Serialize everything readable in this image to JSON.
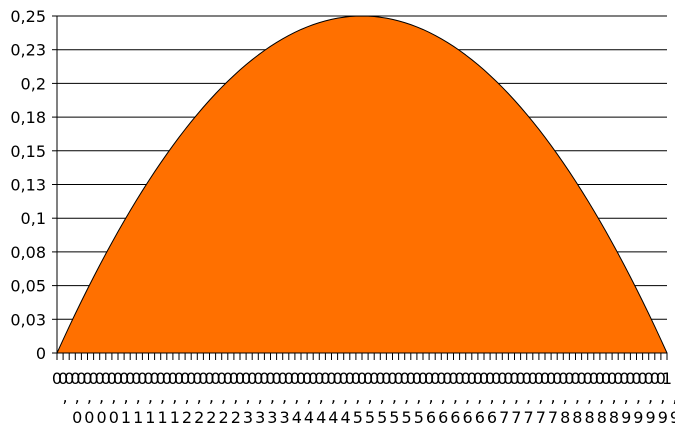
{
  "chart_data": {
    "type": "area",
    "function": "x*(1-x)",
    "x": [
      0.0,
      0.01,
      0.02,
      0.03,
      0.04,
      0.05,
      0.06,
      0.07,
      0.08,
      0.09,
      0.1,
      0.11,
      0.12,
      0.13,
      0.14,
      0.15,
      0.16,
      0.17,
      0.18,
      0.19,
      0.2,
      0.21,
      0.22,
      0.23,
      0.24,
      0.25,
      0.26,
      0.27,
      0.28,
      0.29,
      0.3,
      0.31,
      0.32,
      0.33,
      0.34,
      0.35,
      0.36,
      0.37,
      0.38,
      0.39,
      0.4,
      0.41,
      0.42,
      0.43,
      0.44,
      0.45,
      0.46,
      0.47,
      0.48,
      0.49,
      0.5,
      0.51,
      0.52,
      0.53,
      0.54,
      0.55,
      0.56,
      0.57,
      0.58,
      0.59,
      0.6,
      0.61,
      0.62,
      0.63,
      0.64,
      0.65,
      0.66,
      0.67,
      0.68,
      0.69,
      0.7,
      0.71,
      0.72,
      0.73,
      0.74,
      0.75,
      0.76,
      0.77,
      0.78,
      0.79,
      0.8,
      0.81,
      0.82,
      0.83,
      0.84,
      0.85,
      0.86,
      0.87,
      0.88,
      0.89,
      0.9,
      0.91,
      0.92,
      0.93,
      0.94,
      0.95,
      0.96,
      0.97,
      0.98,
      0.99,
      1.0
    ],
    "series": [
      {
        "values": [
          0,
          0.0099,
          0.0196,
          0.0291,
          0.0384,
          0.0475,
          0.0564,
          0.0651,
          0.0736,
          0.0819,
          0.09,
          0.0979,
          0.1056,
          0.1131,
          0.1204,
          0.1275,
          0.1344,
          0.1411,
          0.1476,
          0.1539,
          0.16,
          0.1659,
          0.1716,
          0.1771,
          0.1824,
          0.1875,
          0.1924,
          0.1971,
          0.2016,
          0.2059,
          0.21,
          0.2139,
          0.2176,
          0.2211,
          0.2244,
          0.2275,
          0.2304,
          0.2331,
          0.2356,
          0.2379,
          0.24,
          0.2419,
          0.2436,
          0.2451,
          0.2464,
          0.2475,
          0.2484,
          0.2491,
          0.2496,
          0.2499,
          0.25,
          0.2499,
          0.2496,
          0.2491,
          0.2484,
          0.2475,
          0.2464,
          0.2451,
          0.2436,
          0.2419,
          0.24,
          0.2379,
          0.2356,
          0.2331,
          0.2304,
          0.2275,
          0.2244,
          0.2211,
          0.2176,
          0.2139,
          0.21,
          0.2059,
          0.2016,
          0.1971,
          0.1924,
          0.1875,
          0.1824,
          0.1771,
          0.1716,
          0.1659,
          0.16,
          0.1539,
          0.1476,
          0.1411,
          0.1344,
          0.1275,
          0.1204,
          0.1131,
          0.1056,
          0.0979,
          0.09,
          0.0819,
          0.0736,
          0.0651,
          0.0564,
          0.0475,
          0.0384,
          0.0291,
          0.0196,
          0.0099,
          0
        ]
      }
    ],
    "ylim": [
      0,
      0.25
    ],
    "xlim": [
      0,
      1
    ],
    "yticks": [
      0,
      0.025,
      0.05,
      0.075,
      0.1,
      0.125,
      0.15,
      0.175,
      0.2,
      0.225,
      0.25
    ],
    "ytick_labels": [
      "0",
      "0,03",
      "0,05",
      "0,08",
      "0,1",
      "0,13",
      "0,15",
      "0,18",
      "0,2",
      "0,23",
      "0,25"
    ],
    "xtick_count": 101,
    "xtick_labels_line1": [
      "0",
      "0",
      "0",
      "0",
      "0",
      "0",
      "0",
      "0",
      "0",
      "0",
      "0",
      "0",
      "0",
      "0",
      "0",
      "0",
      "0",
      "0",
      "0",
      "0",
      "0",
      "0",
      "0",
      "0",
      "0",
      "0",
      "0",
      "0",
      "0",
      "0",
      "0",
      "0",
      "0",
      "0",
      "0",
      "0",
      "0",
      "0",
      "0",
      "0",
      "0",
      "0",
      "0",
      "0",
      "0",
      "0",
      "0",
      "0",
      "0",
      "0",
      "0",
      "0",
      "0",
      "0",
      "0",
      "0",
      "0",
      "0",
      "0",
      "0",
      "0",
      "0",
      "0",
      "0",
      "0",
      "0",
      "0",
      "0",
      "0",
      "0",
      "0",
      "0",
      "0",
      "0",
      "0",
      "0",
      "0",
      "0",
      "0",
      "0",
      "0",
      "0",
      "0",
      "0",
      "0",
      "0",
      "0",
      "0",
      "0",
      "0",
      "0",
      "0",
      "0",
      "0",
      "0",
      "0",
      "0",
      "0",
      "0",
      "0",
      "1"
    ],
    "xtick_labels_line2": [
      "",
      "0",
      "0",
      "0",
      "0",
      "1",
      "1",
      "1",
      "1",
      "1",
      "2",
      "2",
      "2",
      "2",
      "2",
      "3",
      "3",
      "3",
      "3",
      "4",
      "4",
      "4",
      "4",
      "4",
      "5",
      "5",
      "5",
      "5",
      "5",
      "5",
      "6",
      "6",
      "6",
      "6",
      "6",
      "6",
      "7",
      "7",
      "7",
      "7",
      "7",
      "8",
      "8",
      "8",
      "8",
      "8",
      "9",
      "9",
      "9",
      "9",
      "9"
    ],
    "grid": true,
    "fill_color": "#ff7000",
    "line_color": "#000000",
    "gridline_color": "#000000"
  }
}
